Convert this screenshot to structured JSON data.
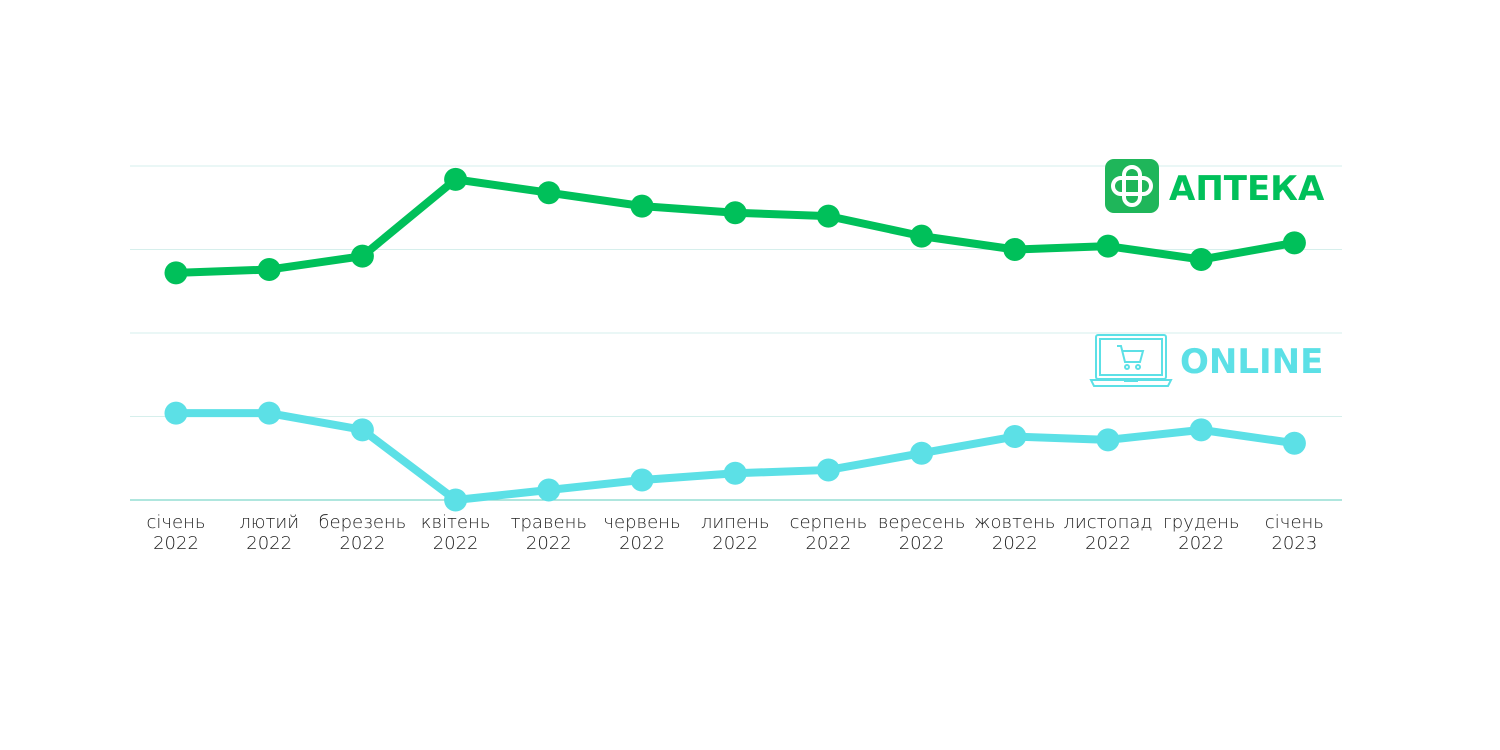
{
  "chart_data": {
    "type": "line",
    "title": "",
    "xlabel": "",
    "ylabel": "",
    "grid": true,
    "legend_placement": "inline-right",
    "x_labels": [
      [
        "січень",
        "2022"
      ],
      [
        "лютий",
        "2022"
      ],
      [
        "березень",
        "2022"
      ],
      [
        "квітень",
        "2022"
      ],
      [
        "травень",
        "2022"
      ],
      [
        "червень",
        "2022"
      ],
      [
        "липень",
        "2022"
      ],
      [
        "серпень",
        "2022"
      ],
      [
        "вересень",
        "2022"
      ],
      [
        "жовтень",
        "2022"
      ],
      [
        "листопад",
        "2022"
      ],
      [
        "грудень",
        "2022"
      ],
      [
        "січень",
        "2023"
      ]
    ],
    "series": [
      {
        "name": "АПТЕКА",
        "color": "#00c05a",
        "icon": "pharmacy-cross-icon",
        "values": [
          68.0,
          69.0,
          73.0,
          96.0,
          92.0,
          88.0,
          86.0,
          85.0,
          79.0,
          75.0,
          76.0,
          72.0,
          77.0
        ]
      },
      {
        "name": "ONLINE",
        "color": "#5ce0e6",
        "icon": "laptop-cart-icon",
        "values": [
          26.0,
          26.0,
          21.0,
          0.0,
          3.0,
          6.0,
          8.0,
          9.0,
          14.0,
          19.0,
          18.0,
          21.0,
          17.0
        ]
      }
    ],
    "ylim": [
      0,
      100
    ],
    "grid_lines": [
      0,
      25,
      50,
      75,
      100
    ]
  }
}
